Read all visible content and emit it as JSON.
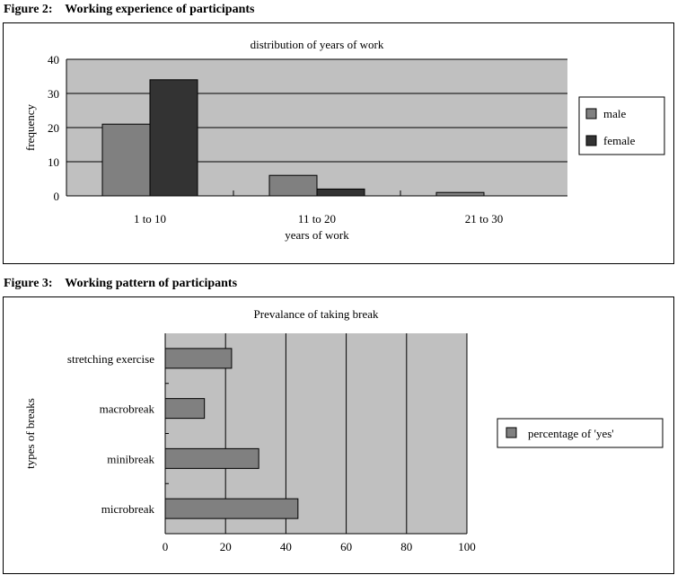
{
  "figures": {
    "fig2_caption": "Figure 2:    Working experience of participants",
    "fig3_caption": "Figure 3:    Working pattern of participants"
  },
  "colors": {
    "plot_bg": "#c0c0c0",
    "male": "#808080",
    "female": "#333333",
    "yes": "#808080"
  },
  "chart_data": [
    {
      "type": "bar",
      "title": "distribution of years of work",
      "xlabel": "years of work",
      "ylabel": "frequency",
      "categories": [
        "1 to 10",
        "11 to 20",
        "21 to 30"
      ],
      "series": [
        {
          "name": "male",
          "values": [
            21,
            6,
            1
          ]
        },
        {
          "name": "female",
          "values": [
            34,
            2,
            0
          ]
        }
      ],
      "ylim": [
        0,
        40
      ],
      "yticks": [
        0,
        10,
        20,
        30,
        40
      ],
      "grid": true,
      "legend": "right"
    },
    {
      "type": "bar",
      "orientation": "horizontal",
      "title": "Prevalance of taking break",
      "xlabel": "",
      "ylabel": "types of breaks",
      "categories": [
        "stretching exercise",
        "macrobreak",
        "minibreak",
        "microbreak"
      ],
      "series": [
        {
          "name": "percentage of 'yes'",
          "values": [
            22,
            13,
            31,
            44
          ]
        }
      ],
      "xlim": [
        0,
        100
      ],
      "xticks": [
        0,
        20,
        40,
        60,
        80,
        100
      ],
      "grid": true,
      "legend": "right"
    }
  ]
}
